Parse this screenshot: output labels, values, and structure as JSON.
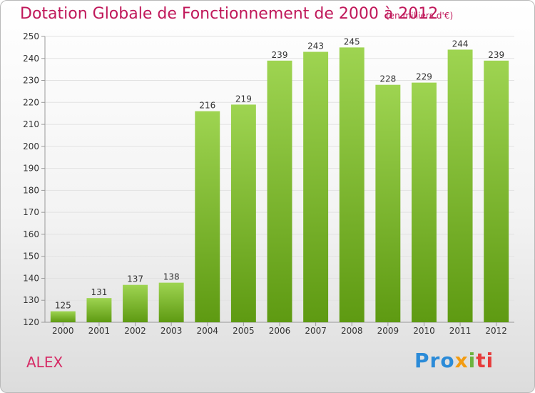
{
  "title": "Dotation Globale de Fonctionnement de 2000 à 2012",
  "unit_note": "(en milliers d'€)",
  "commune": "ALEX",
  "logo": {
    "text": "Proxiti",
    "parts": [
      "Pro",
      "x",
      "i",
      "ti"
    ]
  },
  "colors": {
    "title": "#c0185a",
    "bar_top": "#9ed451",
    "bar_bottom": "#5e9a12",
    "grid": "#e2e2e2"
  },
  "chart_data": {
    "type": "bar",
    "title": "Dotation Globale de Fonctionnement de 2000 à 2012",
    "xlabel": "",
    "ylabel": "",
    "categories": [
      "2000",
      "2001",
      "2002",
      "2003",
      "2004",
      "2005",
      "2006",
      "2007",
      "2008",
      "2009",
      "2010",
      "2011",
      "2012"
    ],
    "values": [
      125,
      131,
      137,
      138,
      216,
      219,
      239,
      243,
      245,
      228,
      229,
      244,
      239
    ],
    "ylim": [
      120,
      250
    ],
    "yticks": [
      120,
      130,
      140,
      150,
      160,
      170,
      180,
      190,
      200,
      210,
      220,
      230,
      240,
      250
    ],
    "grid": true
  }
}
